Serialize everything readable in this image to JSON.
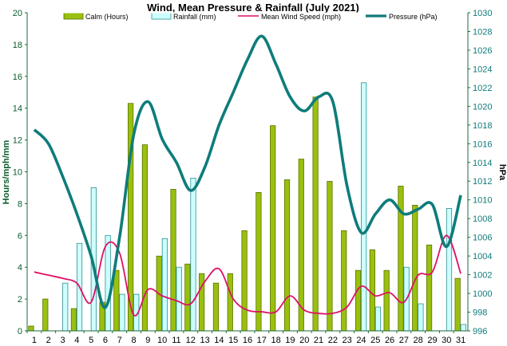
{
  "chart_data": {
    "type": "bar",
    "title": "Wind, Mean Pressure & Rainfall (July 2021)",
    "ylabel": "Hours/mph/mm",
    "y2label": "hPa",
    "categories": [
      "1",
      "2",
      "3",
      "4",
      "5",
      "6",
      "7",
      "8",
      "9",
      "10",
      "11",
      "12",
      "13",
      "14",
      "15",
      "16",
      "17",
      "18",
      "19",
      "20",
      "21",
      "22",
      "23",
      "24",
      "25",
      "26",
      "27",
      "28",
      "29",
      "30",
      "31"
    ],
    "ylim": [
      0,
      20
    ],
    "yticks": [
      "0",
      "2",
      "4",
      "6",
      "8",
      "10",
      "12",
      "14",
      "16",
      "18",
      "20"
    ],
    "y2lim": [
      996,
      1030
    ],
    "y2ticks": [
      "996",
      "998",
      "1000",
      "1002",
      "1004",
      "1006",
      "1008",
      "1010",
      "1012",
      "1014",
      "1016",
      "1018",
      "1020",
      "1022",
      "1024",
      "1026",
      "1028",
      "1030"
    ],
    "legend_position": "top",
    "grid": false,
    "series": [
      {
        "name": "Calm (Hours)",
        "kind": "bar",
        "color": "#99c00e",
        "edge": "#5a7200",
        "values": [
          0.3,
          2.0,
          0,
          1.4,
          0,
          1.8,
          3.8,
          14.3,
          11.7,
          4.7,
          8.9,
          4.2,
          3.6,
          3.0,
          3.6,
          6.3,
          8.7,
          12.9,
          9.5,
          10.8,
          14.7,
          9.4,
          6.3,
          3.8,
          5.1,
          3.8,
          9.1,
          7.9,
          5.4,
          0,
          3.3
        ]
      },
      {
        "name": "Rainfall (mm)",
        "kind": "bar",
        "color": "#ccffff",
        "edge": "#2f8f8f",
        "values": [
          0,
          0,
          3.0,
          5.5,
          9.0,
          6.0,
          2.3,
          2.3,
          0,
          5.8,
          4.0,
          9.6,
          0,
          0,
          0,
          0,
          0,
          0,
          0,
          0,
          0,
          0,
          0,
          15.6,
          1.5,
          0,
          4.0,
          1.7,
          0,
          7.7,
          0.4
        ]
      },
      {
        "name": "Mean Wind Speed (mph)",
        "kind": "line",
        "axis": "left",
        "color": "#dd1166",
        "values": [
          3.7,
          3.5,
          3.3,
          3.0,
          1.8,
          5.3,
          4.9,
          1.0,
          2.6,
          2.2,
          1.9,
          1.7,
          3.1,
          3.9,
          2.0,
          1.3,
          1.2,
          1.2,
          2.2,
          1.3,
          1.1,
          1.1,
          1.5,
          2.8,
          2.2,
          2.4,
          1.8,
          3.5,
          3.7,
          6.0,
          3.6
        ]
      },
      {
        "name": "Pressure (hPa)",
        "kind": "line",
        "axis": "right",
        "color": "#0e7c7b",
        "values": [
          1017.5,
          1016,
          1012.5,
          1008.5,
          1004,
          998.5,
          1006,
          1017,
          1020.5,
          1016.5,
          1014,
          1011,
          1013.5,
          1018,
          1021.5,
          1025,
          1027.5,
          1024.5,
          1021,
          1019.5,
          1021,
          1020.5,
          1011.5,
          1006.5,
          1008.5,
          1010,
          1008.5,
          1009,
          1009.5,
          1005,
          1010.5
        ]
      }
    ]
  }
}
